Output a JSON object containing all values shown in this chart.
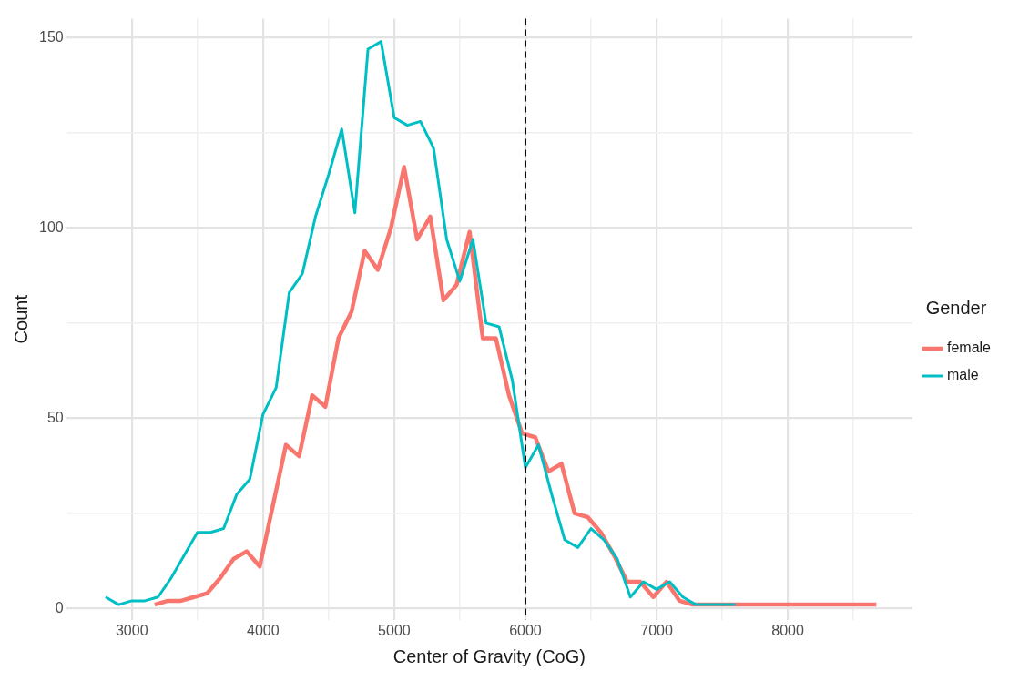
{
  "chart_data": {
    "type": "line",
    "xlabel": "Center of Gravity (CoG)",
    "ylabel": "Count",
    "legend_title": "Gender",
    "legend": "right",
    "grid": true,
    "line_style": "solid",
    "marker": "none",
    "xlim": [
      2500,
      8950
    ],
    "ylim": [
      -3,
      155
    ],
    "xticks": [
      3000,
      {
        "value": 3500,
        "label": null
      },
      4000,
      {
        "value": 4500,
        "label": null
      },
      5000,
      {
        "value": 5500,
        "label": null
      },
      6000,
      {
        "value": 6500,
        "label": null
      },
      7000,
      {
        "value": 7500,
        "label": null
      },
      8000,
      {
        "value": 8500,
        "label": null
      }
    ],
    "yticks": [
      0,
      {
        "value": 25,
        "label": null
      },
      50,
      {
        "value": 75,
        "label": null
      },
      100,
      {
        "value": 125,
        "label": null
      },
      150
    ],
    "ref_lines": [
      {
        "axis": "x",
        "value": 6000,
        "color": "#000000",
        "line_style": "dashed"
      }
    ],
    "series": [
      {
        "name": "female",
        "color": "#f8766d",
        "x": [
          3175,
          3275,
          3375,
          3475,
          3575,
          3675,
          3775,
          3875,
          3975,
          4075,
          4175,
          4275,
          4375,
          4475,
          4575,
          4675,
          4775,
          4875,
          4975,
          5075,
          5175,
          5275,
          5375,
          5475,
          5575,
          5675,
          5775,
          5875,
          5975,
          6075,
          6175,
          6275,
          6375,
          6475,
          6575,
          6675,
          6775,
          6875,
          6975,
          7075,
          7175,
          7275,
          7375,
          7475,
          7575,
          7675,
          7775,
          7875,
          7975,
          8075,
          8175,
          8275,
          8375,
          8475,
          8575,
          8675
        ],
        "values": [
          1,
          2,
          2,
          3,
          4,
          8,
          13,
          15,
          11,
          27,
          43,
          40,
          56,
          53,
          71,
          78,
          94,
          89,
          100,
          116,
          97,
          103,
          81,
          85,
          99,
          71,
          71,
          56,
          46,
          45,
          36,
          38,
          25,
          24,
          20,
          14,
          7,
          7,
          3,
          7,
          2,
          1,
          1,
          1,
          1,
          1,
          1,
          1,
          1,
          1,
          1,
          1,
          1,
          1,
          1,
          1
        ]
      },
      {
        "name": "male",
        "color": "#00bfc4",
        "x": [
          2800,
          2900,
          3000,
          3100,
          3200,
          3300,
          3400,
          3500,
          3600,
          3700,
          3800,
          3900,
          4000,
          4100,
          4200,
          4300,
          4400,
          4500,
          4600,
          4700,
          4800,
          4900,
          5000,
          5100,
          5200,
          5300,
          5400,
          5500,
          5600,
          5700,
          5800,
          5900,
          6000,
          6100,
          6200,
          6300,
          6400,
          6500,
          6600,
          6700,
          6800,
          6900,
          7000,
          7100,
          7200,
          7300,
          7400,
          7500,
          7600
        ],
        "values": [
          3,
          1,
          2,
          2,
          3,
          8,
          14,
          20,
          20,
          21,
          30,
          34,
          51,
          58,
          83,
          88,
          103,
          114,
          126,
          104,
          147,
          149,
          129,
          127,
          128,
          121,
          97,
          86,
          97,
          75,
          74,
          60,
          37,
          43,
          30,
          18,
          16,
          21,
          18,
          13,
          3,
          7,
          5,
          7,
          3,
          1,
          1,
          1,
          1
        ]
      }
    ]
  }
}
